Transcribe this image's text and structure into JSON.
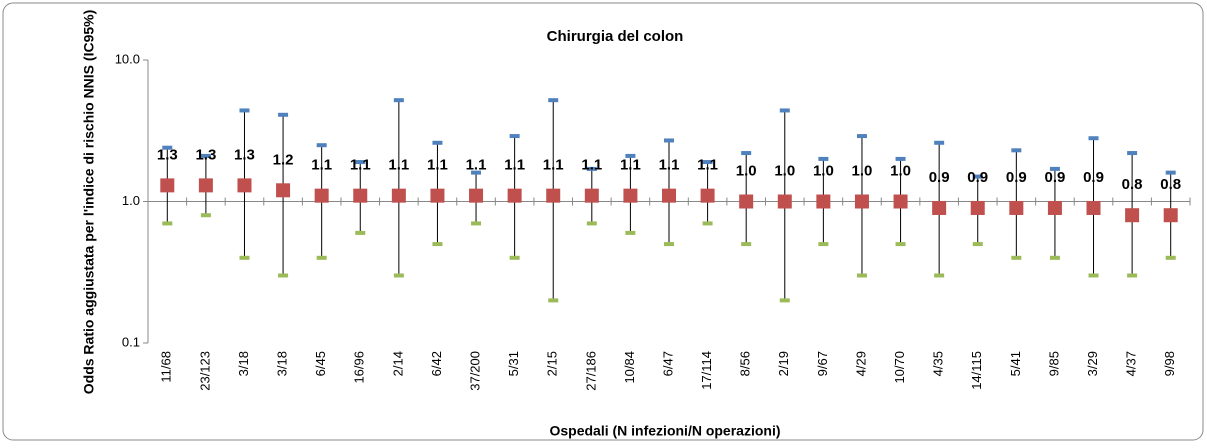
{
  "chart_data": {
    "type": "errorbar",
    "title": "Chirurgia del colon",
    "x_label": "Ospedali (N infezioni/N operazioni)",
    "y_label": "Odds Ratio aggiustata per l'indice di rischio NNIS (IC95%)",
    "log_scale": true,
    "ylim": [
      0.1,
      10
    ],
    "yticks": [
      0.1,
      {
        "value": 1,
        "label": "1.0"
      },
      {
        "value": 10,
        "label": "10.0"
      }
    ],
    "xaxis_crosses": 1,
    "categories": [
      "11/68",
      "23/123",
      "3/18",
      "3/18",
      "6/45",
      "16/96",
      "2/14",
      "6/42",
      "37/200",
      "5/31",
      "2/15",
      "27/186",
      "10/84",
      "6/47",
      "17/114",
      "8/56",
      "2/19",
      "9/67",
      "4/29",
      "10/70",
      "4/35",
      "14/115",
      "5/41",
      "9/85",
      "3/29",
      "4/37",
      "9/98"
    ],
    "values": [
      1.3,
      1.3,
      1.3,
      1.2,
      1.1,
      1.1,
      1.1,
      1.1,
      1.1,
      1.1,
      1.1,
      1.1,
      1.1,
      1.1,
      1.1,
      1.0,
      1.0,
      1.0,
      1.0,
      1.0,
      0.9,
      0.9,
      0.9,
      0.9,
      0.9,
      0.8,
      0.8
    ],
    "value_labels": [
      "1.3",
      "1.3",
      "1.3",
      "1.2",
      "1.1",
      "1.1",
      "1.1",
      "1.1",
      "1.1",
      "1.1",
      "1.1",
      "1.1",
      "1.1",
      "1.1",
      "1.1",
      "1.0",
      "1.0",
      "1.0",
      "1.0",
      "1.0",
      "0.9",
      "0.9",
      "0.9",
      "0.9",
      "0.9",
      "0.8",
      "0.8"
    ],
    "lower": [
      0.7,
      0.8,
      0.4,
      0.3,
      0.4,
      0.6,
      0.3,
      0.5,
      0.7,
      0.4,
      0.2,
      0.7,
      0.6,
      0.5,
      0.7,
      0.5,
      0.2,
      0.5,
      0.3,
      0.5,
      0.3,
      0.5,
      0.4,
      0.4,
      0.3,
      0.3,
      0.4
    ],
    "upper": [
      2.4,
      2.1,
      4.4,
      4.1,
      2.5,
      1.9,
      5.2,
      2.6,
      1.6,
      2.9,
      5.2,
      1.7,
      2.1,
      2.7,
      1.9,
      2.2,
      4.4,
      2.0,
      2.9,
      2.0,
      2.6,
      1.5,
      2.3,
      1.7,
      2.8,
      2.2,
      1.6
    ],
    "color": "#c0504d",
    "lower_color": "#9bbb59",
    "upper_color": "#4f81bd"
  }
}
